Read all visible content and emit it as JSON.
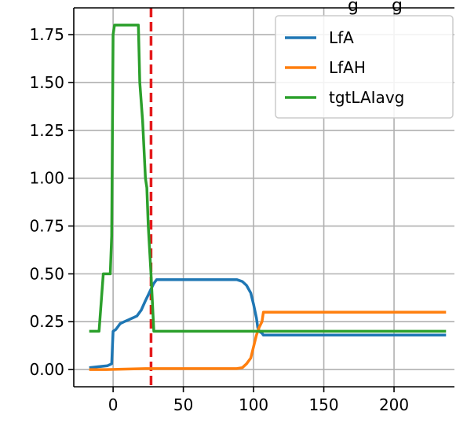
{
  "chart_data": {
    "type": "line",
    "title_fragment": "g      g",
    "xlim": [
      -28,
      243
    ],
    "ylim": [
      -0.09,
      1.89
    ],
    "x_ticks": [
      0,
      50,
      100,
      150,
      200
    ],
    "x_tick_labels": [
      "0",
      "50",
      "100",
      "150",
      "200"
    ],
    "y_ticks": [
      0.0,
      0.25,
      0.5,
      0.75,
      1.0,
      1.25,
      1.5,
      1.75
    ],
    "y_tick_labels": [
      "0.00",
      "0.25",
      "0.50",
      "0.75",
      "1.00",
      "1.25",
      "1.50",
      "1.75"
    ],
    "grid": true,
    "legend_position": "top-right",
    "vline": {
      "x": 27,
      "style": "dashed",
      "color": "#e41a1c"
    },
    "series": [
      {
        "name": "LfA",
        "color": "#1f77b4",
        "points": [
          [
            -17,
            0.01
          ],
          [
            -10,
            0.015
          ],
          [
            -4,
            0.02
          ],
          [
            -1,
            0.03
          ],
          [
            0,
            0.2
          ],
          [
            2,
            0.21
          ],
          [
            5,
            0.24
          ],
          [
            8,
            0.25
          ],
          [
            11,
            0.26
          ],
          [
            14,
            0.27
          ],
          [
            17,
            0.28
          ],
          [
            20,
            0.31
          ],
          [
            23,
            0.36
          ],
          [
            25,
            0.39
          ],
          [
            27,
            0.42
          ],
          [
            29,
            0.45
          ],
          [
            31,
            0.47
          ],
          [
            40,
            0.47
          ],
          [
            88,
            0.47
          ],
          [
            92,
            0.46
          ],
          [
            95,
            0.44
          ],
          [
            98,
            0.4
          ],
          [
            100,
            0.34
          ],
          [
            102,
            0.27
          ],
          [
            103,
            0.22
          ],
          [
            104,
            0.2
          ],
          [
            106,
            0.19
          ],
          [
            107,
            0.18
          ],
          [
            237,
            0.18
          ]
        ]
      },
      {
        "name": "LfAH",
        "color": "#ff7f0e",
        "points": [
          [
            -17,
            0.0
          ],
          [
            -5,
            0.0
          ],
          [
            23,
            0.005
          ],
          [
            88,
            0.005
          ],
          [
            92,
            0.01
          ],
          [
            95,
            0.03
          ],
          [
            98,
            0.06
          ],
          [
            100,
            0.12
          ],
          [
            102,
            0.18
          ],
          [
            104,
            0.22
          ],
          [
            106,
            0.25
          ],
          [
            107,
            0.3
          ],
          [
            237,
            0.3
          ]
        ]
      },
      {
        "name": "tgtLAIavg",
        "color": "#2ca02c",
        "points": [
          [
            -17,
            0.2
          ],
          [
            -10,
            0.2
          ],
          [
            -7,
            0.5
          ],
          [
            -2,
            0.5
          ],
          [
            -1,
            0.7
          ],
          [
            0,
            1.75
          ],
          [
            1,
            1.8
          ],
          [
            18,
            1.8
          ],
          [
            19,
            1.5
          ],
          [
            21,
            1.3
          ],
          [
            23,
            1.0
          ],
          [
            24,
            0.95
          ],
          [
            25,
            0.75
          ],
          [
            27,
            0.5
          ],
          [
            29,
            0.2
          ],
          [
            237,
            0.2
          ]
        ]
      }
    ]
  }
}
